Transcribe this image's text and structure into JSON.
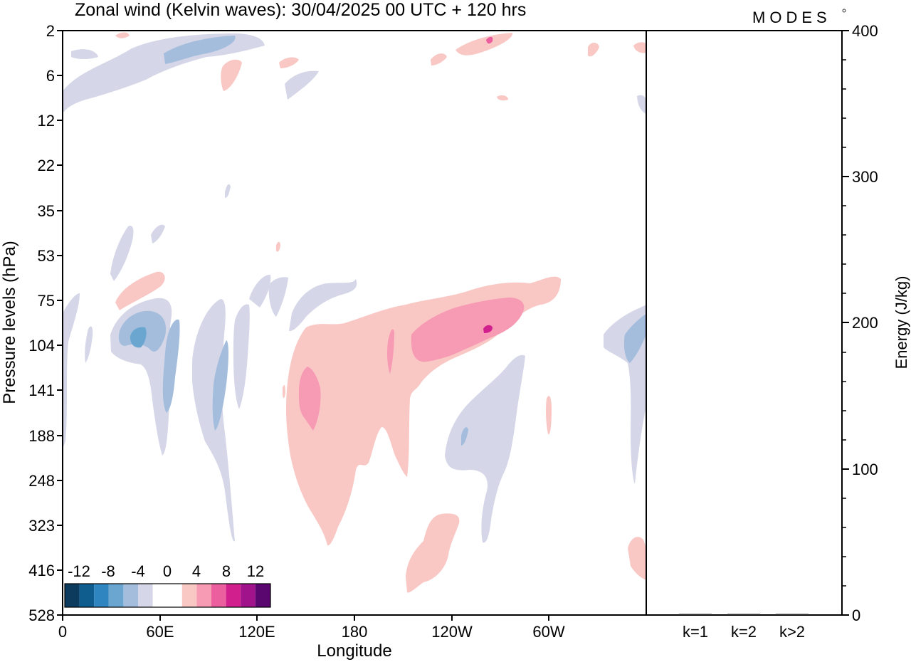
{
  "title": "Zonal wind (Kelvin waves):  30/04/2025  00 UTC  + 120 hrs",
  "logo": "MODES",
  "chart_data": [
    {
      "type": "heatmap",
      "title": "Zonal wind (Kelvin waves):  30/04/2025  00 UTC  + 120 hrs",
      "xlabel": "Longitude",
      "ylabel": "Pressure levels (hPa)",
      "x_ticks": [
        "0",
        "60E",
        "120E",
        "180",
        "120W",
        "60W"
      ],
      "x_tick_degrees": [
        0,
        60,
        120,
        180,
        240,
        300
      ],
      "xlim": [
        0,
        360
      ],
      "y_ticks": [
        "2",
        "6",
        "12",
        "22",
        "35",
        "53",
        "75",
        "104",
        "141",
        "188",
        "248",
        "323",
        "416",
        "528"
      ],
      "y_scale": "model levels (pressure, hPa), top = 2",
      "colorbar": {
        "labels": [
          "-12",
          "-8",
          "-4",
          "0",
          "4",
          "8",
          "12"
        ],
        "colors": [
          "#0d3b5e",
          "#0f5d8f",
          "#2f85bf",
          "#6aa6d0",
          "#a4bddd",
          "#d5d7e8",
          "#ffffff",
          "#ffffff",
          "#f9c8c5",
          "#f79ab4",
          "#ec5f9f",
          "#d11f8e",
          "#a0138a",
          "#5a0770"
        ]
      },
      "features": [
        {
          "sign": "positive",
          "lon": [
            140,
            250
          ],
          "pressure_hPa": [
            75,
            416
          ],
          "peak_ms": 8
        },
        {
          "sign": "negative",
          "lon": [
            30,
            70
          ],
          "pressure_hPa": [
            75,
            188
          ],
          "peak_ms": -8
        },
        {
          "sign": "negative",
          "lon": [
            235,
            290
          ],
          "pressure_hPa": [
            104,
            323
          ],
          "peak_ms": -6
        },
        {
          "sign": "negative",
          "lon": [
            320,
            360
          ],
          "pressure_hPa": [
            75,
            248
          ],
          "peak_ms": -6
        },
        {
          "sign": "mixed",
          "lon": [
            0,
            360
          ],
          "pressure_hPa": [
            2,
            12
          ],
          "peak_ms": 6
        }
      ]
    },
    {
      "type": "bar",
      "ylabel": "Energy (J/kg)",
      "categories": [
        "k=1",
        "k=2",
        "k>2"
      ],
      "values": [
        0.5,
        0.3,
        0.3
      ],
      "ylim": [
        0,
        400
      ],
      "y_ticks": [
        0,
        100,
        200,
        300,
        400
      ]
    }
  ]
}
